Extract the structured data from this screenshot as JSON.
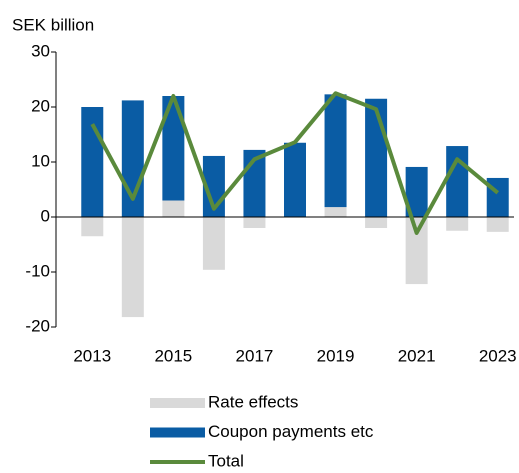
{
  "chart_data": {
    "type": "bar",
    "y_axis_label": "SEK billion",
    "categories": [
      "2013",
      null,
      "2015",
      null,
      "2017",
      null,
      "2019",
      null,
      "2021",
      null,
      "2023"
    ],
    "series": [
      {
        "name": "Rate effects",
        "color": "#d9d9d9",
        "type": "bar",
        "values": [
          -3.5,
          -18.2,
          3.0,
          -9.6,
          -2.0,
          0,
          1.8,
          -2.0,
          -12.2,
          -2.5,
          -2.7
        ]
      },
      {
        "name": "Coupon payments etc",
        "color": "#0a5ca4",
        "type": "bar",
        "values": [
          20.0,
          21.2,
          19.0,
          11.1,
          12.2,
          13.5,
          20.5,
          21.5,
          9.1,
          12.9,
          7.1
        ]
      },
      {
        "name": "Total",
        "color": "#5a8a3c",
        "type": "line",
        "values": [
          16.9,
          3.3,
          22.0,
          1.5,
          10.5,
          13.6,
          22.5,
          19.6,
          -2.9,
          10.5,
          4.4
        ]
      }
    ],
    "ylim": [
      -20,
      30
    ],
    "yticks": [
      -20,
      -10,
      0,
      10,
      20,
      30
    ],
    "grid": false
  }
}
